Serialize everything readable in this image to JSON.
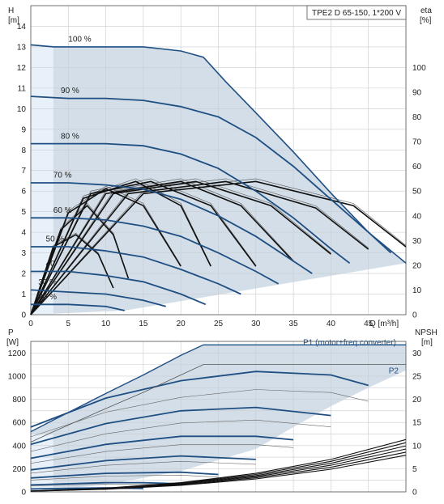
{
  "chart_data": [
    {
      "type": "line",
      "title": "TPE2 D 65-150, 1*200 V",
      "ylabel_left": "H",
      "ylabel_left_unit": "[m]",
      "ylabel_right": "eta",
      "ylabel_right_unit": "[%]",
      "xlabel": "Q [m³/h]",
      "xlim": [
        0,
        50
      ],
      "ylim_left": [
        0,
        15
      ],
      "ylim_right": [
        0,
        125
      ],
      "x_ticks": [
        "0",
        "5",
        "10",
        "15",
        "20",
        "25",
        "30",
        "35",
        "40",
        "45",
        "Q [m³/h]"
      ],
      "y_ticks_left": [
        "0",
        "1",
        "2",
        "3",
        "4",
        "5",
        "6",
        "7",
        "8",
        "9",
        "10",
        "11",
        "12",
        "13",
        "14"
      ],
      "y_ticks_right": [
        "0",
        "10",
        "20",
        "30",
        "40",
        "50",
        "60",
        "70",
        "80",
        "90",
        "100"
      ],
      "grid": true,
      "speed_labels": [
        "100 %",
        "90 %",
        "80 %",
        "70 %",
        "60 %",
        "50 %",
        "40",
        "30 %",
        "20 %"
      ],
      "series": [
        {
          "name": "100 %",
          "x": [
            0,
            3,
            5,
            10,
            15,
            20,
            23,
            26,
            30,
            35,
            40,
            45,
            50
          ],
          "y": [
            13.1,
            13.0,
            13.0,
            13.0,
            13.0,
            12.8,
            12.5,
            11.3,
            9.8,
            7.9,
            5.9,
            4.0,
            2.5
          ]
        },
        {
          "name": "90 %",
          "x": [
            0,
            5,
            10,
            15,
            20,
            25,
            30,
            35,
            40,
            45,
            48
          ],
          "y": [
            10.6,
            10.5,
            10.5,
            10.4,
            10.1,
            9.6,
            8.6,
            7.2,
            5.6,
            4.0,
            3.0
          ]
        },
        {
          "name": "80 %",
          "x": [
            0,
            5,
            10,
            15,
            20,
            25,
            30,
            35,
            40,
            42.5
          ],
          "y": [
            8.3,
            8.3,
            8.3,
            8.2,
            7.8,
            7.1,
            6.0,
            4.7,
            3.2,
            2.5
          ]
        },
        {
          "name": "70 %",
          "x": [
            0,
            5,
            10,
            15,
            20,
            25,
            30,
            35,
            37.5
          ],
          "y": [
            6.4,
            6.4,
            6.3,
            6.1,
            5.6,
            4.8,
            3.8,
            2.6,
            2.0
          ]
        },
        {
          "name": "60 %",
          "x": [
            0,
            5,
            10,
            15,
            20,
            25,
            30,
            33
          ],
          "y": [
            4.7,
            4.7,
            4.6,
            4.3,
            3.8,
            3.0,
            2.1,
            1.5
          ]
        },
        {
          "name": "50 %",
          "x": [
            0,
            5,
            10,
            15,
            20,
            25,
            28
          ],
          "y": [
            3.3,
            3.3,
            3.1,
            2.8,
            2.2,
            1.5,
            1.0
          ]
        },
        {
          "name": "40",
          "x": [
            0,
            5,
            10,
            15,
            20,
            23.3
          ],
          "y": [
            2.1,
            2.1,
            1.9,
            1.6,
            1.0,
            0.5
          ]
        },
        {
          "name": "30 %",
          "x": [
            0,
            5,
            10,
            15,
            18
          ],
          "y": [
            1.2,
            1.1,
            1.0,
            0.7,
            0.4
          ]
        },
        {
          "name": "20 %",
          "x": [
            0,
            5,
            10,
            12.5
          ],
          "y": [
            0.5,
            0.5,
            0.4,
            0.2
          ]
        }
      ],
      "efficiency_curves": [
        {
          "x": [
            0,
            3,
            6,
            9,
            11
          ],
          "y": [
            0,
            28,
            33,
            25,
            11
          ]
        },
        {
          "x": [
            0,
            4,
            7.5,
            11,
            13
          ],
          "y": [
            0,
            35,
            45,
            33,
            15
          ]
        },
        {
          "x": [
            0,
            5,
            10,
            15,
            20
          ],
          "y": [
            0,
            42,
            52,
            45,
            20
          ]
        },
        {
          "x": [
            0,
            7,
            14,
            20,
            24
          ],
          "y": [
            0,
            48,
            55,
            45,
            20
          ]
        },
        {
          "x": [
            0,
            8,
            16,
            24,
            30
          ],
          "y": [
            0,
            50,
            55,
            45,
            20
          ]
        },
        {
          "x": [
            0,
            10,
            20,
            28,
            35
          ],
          "y": [
            0,
            50,
            55,
            45,
            22
          ]
        },
        {
          "x": [
            0,
            11,
            22,
            32,
            40
          ],
          "y": [
            0,
            50,
            55,
            45,
            25
          ]
        },
        {
          "x": [
            0,
            13,
            26,
            38,
            45
          ],
          "y": [
            0,
            50,
            55,
            44,
            27
          ]
        },
        {
          "x": [
            0,
            15,
            30,
            43,
            50
          ],
          "y": [
            0,
            50,
            55,
            45,
            28
          ]
        }
      ]
    },
    {
      "type": "line",
      "ylabel_left": "P",
      "ylabel_left_unit": "[W]",
      "ylabel_right": "NPSH",
      "ylabel_right_unit": "[m]",
      "xlim": [
        0,
        50
      ],
      "ylim_left": [
        0,
        1300
      ],
      "ylim_right": [
        0,
        32.5
      ],
      "y_ticks_left": [
        "0",
        "200",
        "400",
        "600",
        "800",
        "1000",
        "1200"
      ],
      "y_ticks_right": [
        "0",
        "5",
        "10",
        "15",
        "20",
        "25",
        "30"
      ],
      "grid": true,
      "series": [
        {
          "name": "P1 (motor+freq.converter)",
          "x": [
            0,
            3,
            10,
            15,
            20,
            23,
            30,
            35,
            40,
            45,
            50
          ],
          "y": [
            520,
            620,
            850,
            1010,
            1180,
            1270,
            1270,
            1270,
            1270,
            1270,
            1270
          ]
        },
        {
          "name": "P2",
          "x": [
            0,
            3,
            10,
            15,
            20,
            23,
            30,
            35,
            40,
            45,
            50
          ],
          "y": [
            430,
            520,
            720,
            860,
            1010,
            1100,
            1100,
            1100,
            1100,
            1100,
            1100
          ]
        },
        {
          "name": "NPSH",
          "x": [
            0,
            10,
            20,
            30,
            40,
            50
          ],
          "y": [
            0.2,
            0.8,
            2.0,
            4.0,
            7.0,
            11.3
          ]
        }
      ],
      "power_curves": [
        {
          "x": [
            0,
            10,
            20,
            30,
            40,
            45
          ],
          "y": [
            560,
            810,
            960,
            1040,
            1010,
            920
          ]
        },
        {
          "x": [
            0,
            10,
            20,
            30,
            40
          ],
          "y": [
            410,
            590,
            700,
            730,
            660
          ]
        },
        {
          "x": [
            0,
            10,
            20,
            30,
            35
          ],
          "y": [
            290,
            410,
            480,
            480,
            450
          ]
        },
        {
          "x": [
            0,
            10,
            20,
            30
          ],
          "y": [
            190,
            270,
            310,
            280
          ]
        },
        {
          "x": [
            0,
            10,
            20,
            25
          ],
          "y": [
            120,
            160,
            170,
            150
          ]
        },
        {
          "x": [
            0,
            10,
            15,
            20
          ],
          "y": [
            60,
            80,
            80,
            70
          ]
        },
        {
          "x": [
            0,
            10,
            15
          ],
          "y": [
            25,
            35,
            30
          ]
        }
      ]
    }
  ]
}
